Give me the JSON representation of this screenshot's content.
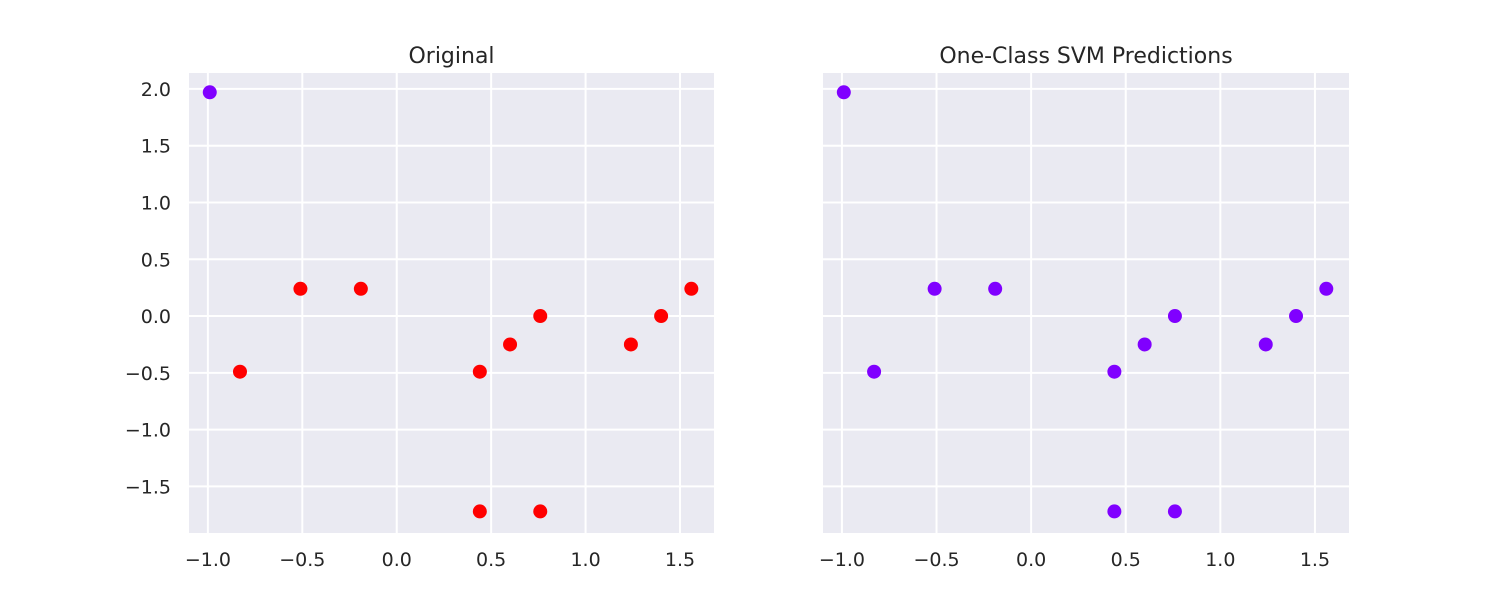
{
  "chart_data": [
    {
      "type": "scatter",
      "title": "Original",
      "xlabel": "",
      "ylabel": "",
      "xlim": [
        -1.1,
        1.68
      ],
      "ylim": [
        -1.91,
        2.14
      ],
      "xticks": [
        -1.0,
        -0.5,
        0.0,
        0.5,
        1.0,
        1.5
      ],
      "yticks": [
        -1.5,
        -1.0,
        -0.5,
        0.0,
        0.5,
        1.0,
        1.5,
        2.0
      ],
      "xtick_labels": [
        "−1.0",
        "−0.5",
        "0.0",
        "0.5",
        "1.0",
        "1.5"
      ],
      "ytick_labels": [
        "−1.5",
        "−1.0",
        "−0.5",
        "0.0",
        "0.5",
        "1.0",
        "1.5",
        "2.0"
      ],
      "grid": true,
      "background": "#eaeaf2",
      "points": [
        {
          "x": -0.99,
          "y": 1.97,
          "color": "#8000ff"
        },
        {
          "x": -0.83,
          "y": -0.49,
          "color": "#ff0000"
        },
        {
          "x": -0.51,
          "y": 0.24,
          "color": "#ff0000"
        },
        {
          "x": -0.19,
          "y": 0.24,
          "color": "#ff0000"
        },
        {
          "x": 0.44,
          "y": -0.49,
          "color": "#ff0000"
        },
        {
          "x": 0.44,
          "y": -1.72,
          "color": "#ff0000"
        },
        {
          "x": 0.6,
          "y": -0.25,
          "color": "#ff0000"
        },
        {
          "x": 0.76,
          "y": 0.0,
          "color": "#ff0000"
        },
        {
          "x": 0.76,
          "y": -1.72,
          "color": "#ff0000"
        },
        {
          "x": 1.24,
          "y": -0.25,
          "color": "#ff0000"
        },
        {
          "x": 1.4,
          "y": 0.0,
          "color": "#ff0000"
        },
        {
          "x": 1.56,
          "y": 0.24,
          "color": "#ff0000"
        }
      ]
    },
    {
      "type": "scatter",
      "title": "One-Class SVM Predictions",
      "xlabel": "",
      "ylabel": "",
      "xlim": [
        -1.1,
        1.68
      ],
      "ylim": [
        -1.91,
        2.14
      ],
      "xticks": [
        -1.0,
        -0.5,
        0.0,
        0.5,
        1.0,
        1.5
      ],
      "yticks": [
        -1.5,
        -1.0,
        -0.5,
        0.0,
        0.5,
        1.0,
        1.5,
        2.0
      ],
      "xtick_labels": [
        "−1.0",
        "−0.5",
        "0.0",
        "0.5",
        "1.0",
        "1.5"
      ],
      "ytick_labels": [],
      "grid": true,
      "background": "#eaeaf2",
      "points": [
        {
          "x": -0.99,
          "y": 1.97,
          "color": "#8000ff"
        },
        {
          "x": -0.83,
          "y": -0.49,
          "color": "#8000ff"
        },
        {
          "x": -0.51,
          "y": 0.24,
          "color": "#8000ff"
        },
        {
          "x": -0.19,
          "y": 0.24,
          "color": "#8000ff"
        },
        {
          "x": 0.44,
          "y": -0.49,
          "color": "#8000ff"
        },
        {
          "x": 0.44,
          "y": -1.72,
          "color": "#8000ff"
        },
        {
          "x": 0.6,
          "y": -0.25,
          "color": "#8000ff"
        },
        {
          "x": 0.76,
          "y": 0.0,
          "color": "#8000ff"
        },
        {
          "x": 0.76,
          "y": -1.72,
          "color": "#8000ff"
        },
        {
          "x": 1.24,
          "y": -0.25,
          "color": "#8000ff"
        },
        {
          "x": 1.4,
          "y": 0.0,
          "color": "#8000ff"
        },
        {
          "x": 1.56,
          "y": 0.24,
          "color": "#8000ff"
        }
      ]
    }
  ]
}
